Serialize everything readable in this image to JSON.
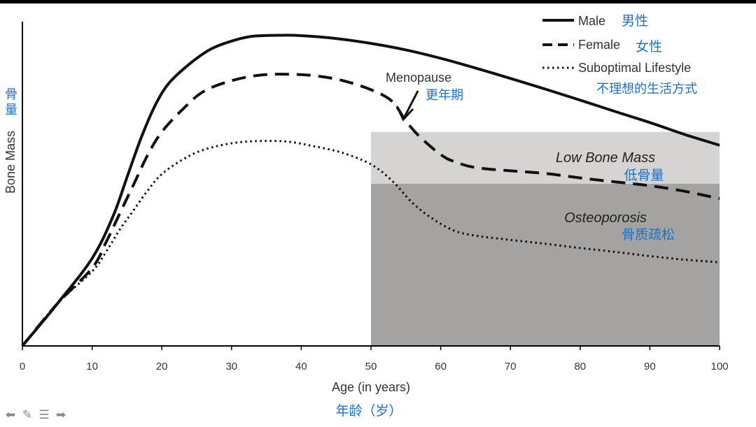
{
  "chart_data": {
    "type": "line",
    "xlabel": "Age (in years)",
    "xlabel_cn": "年龄（岁）",
    "ylabel": "Bone Mass",
    "ylabel_cn": "骨量",
    "xlim": [
      0,
      100
    ],
    "ylim": [
      0,
      100
    ],
    "x_ticks": [
      0,
      10,
      20,
      30,
      40,
      50,
      60,
      70,
      80,
      90,
      100
    ],
    "legend_position": "top-right",
    "series": [
      {
        "name": "Male",
        "name_cn": "男性",
        "style": "solid",
        "points": [
          [
            0,
            0
          ],
          [
            5,
            13
          ],
          [
            10,
            27
          ],
          [
            13,
            40
          ],
          [
            15,
            52
          ],
          [
            17,
            64
          ],
          [
            19,
            74
          ],
          [
            21,
            81
          ],
          [
            24,
            87
          ],
          [
            27,
            91.5
          ],
          [
            30,
            94
          ],
          [
            33,
            95.5
          ],
          [
            37,
            95.8
          ],
          [
            40,
            95.7
          ],
          [
            45,
            94.8
          ],
          [
            50,
            93.3
          ],
          [
            55,
            91.3
          ],
          [
            60,
            88.7
          ],
          [
            65,
            85.7
          ],
          [
            70,
            82.5
          ],
          [
            75,
            79.2
          ],
          [
            80,
            75.8
          ],
          [
            85,
            72.3
          ],
          [
            90,
            68.9
          ],
          [
            95,
            65.2
          ],
          [
            100,
            61.9
          ]
        ]
      },
      {
        "name": "Female",
        "name_cn": "女性",
        "style": "dashed",
        "points": [
          [
            0,
            0
          ],
          [
            5,
            13
          ],
          [
            10,
            24
          ],
          [
            12,
            32
          ],
          [
            14,
            41
          ],
          [
            16,
            50
          ],
          [
            18,
            59
          ],
          [
            20,
            66
          ],
          [
            23,
            73
          ],
          [
            26,
            78.5
          ],
          [
            30,
            81.8
          ],
          [
            34,
            83.5
          ],
          [
            38,
            83.8
          ],
          [
            42,
            83.3
          ],
          [
            46,
            81.8
          ],
          [
            50,
            79
          ],
          [
            53,
            75.5
          ],
          [
            55,
            69.4
          ],
          [
            57,
            64.5
          ],
          [
            60,
            59
          ],
          [
            62,
            56.8
          ],
          [
            65,
            55
          ],
          [
            70,
            54
          ],
          [
            75,
            53.2
          ],
          [
            80,
            51.8
          ],
          [
            85,
            50.6
          ],
          [
            90,
            49.4
          ],
          [
            95,
            47.7
          ],
          [
            100,
            45.4
          ]
        ]
      },
      {
        "name": "Suboptimal Lifestyle",
        "name_cn": "不理想的生活方式",
        "style": "dotted",
        "points": [
          [
            0,
            0
          ],
          [
            5,
            13
          ],
          [
            10,
            23
          ],
          [
            12,
            29
          ],
          [
            14,
            36
          ],
          [
            16,
            42
          ],
          [
            18,
            48
          ],
          [
            20,
            53
          ],
          [
            23,
            57.5
          ],
          [
            26,
            60.5
          ],
          [
            30,
            62.5
          ],
          [
            34,
            63.2
          ],
          [
            38,
            63
          ],
          [
            42,
            61.5
          ],
          [
            46,
            59.5
          ],
          [
            50,
            56
          ],
          [
            53,
            51
          ],
          [
            56,
            44
          ],
          [
            59,
            39
          ],
          [
            62,
            35.5
          ],
          [
            65,
            34
          ],
          [
            70,
            32.7
          ],
          [
            75,
            31.5
          ],
          [
            80,
            30.2
          ],
          [
            85,
            29
          ],
          [
            90,
            27.7
          ],
          [
            95,
            26.6
          ],
          [
            100,
            25.8
          ]
        ]
      }
    ],
    "regions": [
      {
        "label": "Low Bone Mass",
        "label_cn": "低骨量",
        "x_start": 50,
        "x_end": 100,
        "y_start": 50,
        "y_end": 66,
        "color": "#d6d3d3"
      },
      {
        "label": "Osteoporosis",
        "label_cn": "骨质疏松",
        "x_start": 50,
        "x_end": 100,
        "y_start": 0,
        "y_end": 50,
        "color": "#a5a2a2"
      }
    ],
    "annotation": {
      "text": "Menopause",
      "text_cn": "更年期",
      "arrow_to": [
        55,
        70
      ]
    }
  },
  "colors": {
    "line": "#111111",
    "chinese_text": "#1a73c8",
    "axis": "#000000"
  },
  "nav_icons": [
    "left-arrow-icon",
    "pencil-icon",
    "menu-icon",
    "right-arrow-icon"
  ]
}
